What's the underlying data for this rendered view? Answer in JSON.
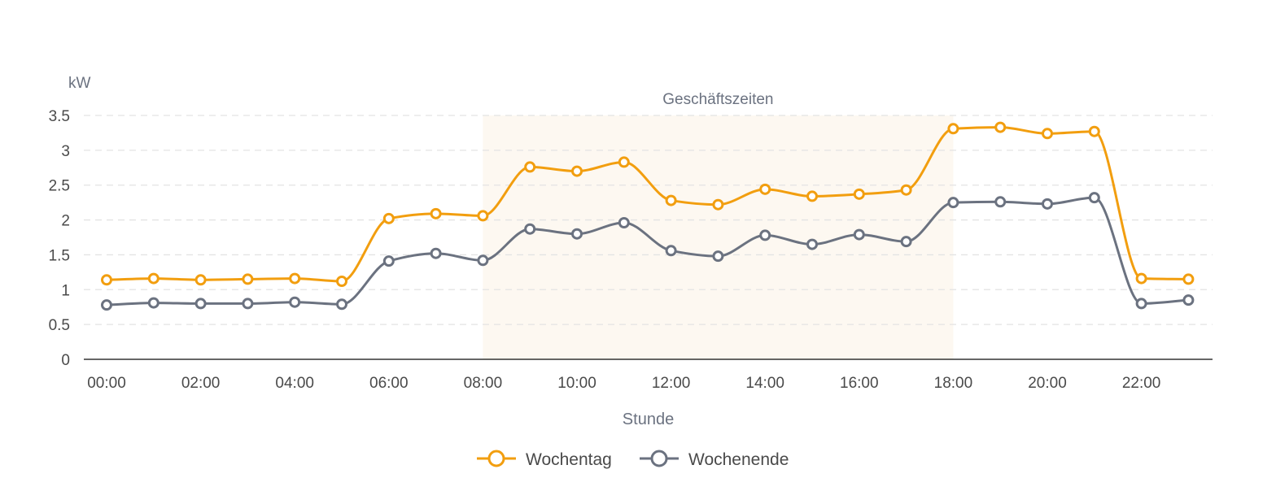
{
  "chart_data": {
    "type": "line",
    "y_unit": "kW",
    "xlabel": "Stunde",
    "ylim": [
      0,
      3.5
    ],
    "y_ticks": [
      0,
      0.5,
      1,
      1.5,
      2,
      2.5,
      3,
      3.5
    ],
    "y_tick_labels": [
      "0",
      "0.5",
      "1",
      "1.5",
      "2",
      "2.5",
      "3",
      "3.5"
    ],
    "x": [
      "00:00",
      "01:00",
      "02:00",
      "03:00",
      "04:00",
      "05:00",
      "06:00",
      "07:00",
      "08:00",
      "09:00",
      "10:00",
      "11:00",
      "12:00",
      "13:00",
      "14:00",
      "15:00",
      "16:00",
      "17:00",
      "18:00",
      "19:00",
      "20:00",
      "21:00",
      "22:00",
      "23:00"
    ],
    "x_tick_labels": [
      "00:00",
      "02:00",
      "04:00",
      "06:00",
      "08:00",
      "10:00",
      "12:00",
      "14:00",
      "16:00",
      "18:00",
      "20:00",
      "22:00"
    ],
    "band": {
      "label": "Geschäftszeiten",
      "from": "08:00",
      "to": "18:00",
      "color": "#fdf8f1"
    },
    "legend_position": "bottom-center",
    "grid": true,
    "series": [
      {
        "name": "Wochentag",
        "color": "#f29e0f",
        "values": [
          1.14,
          1.16,
          1.14,
          1.15,
          1.16,
          1.12,
          2.02,
          2.09,
          2.06,
          2.76,
          2.7,
          2.83,
          2.28,
          2.22,
          2.44,
          2.34,
          2.37,
          2.43,
          3.31,
          3.33,
          3.24,
          3.27,
          1.16,
          1.15
        ]
      },
      {
        "name": "Wochenende",
        "color": "#6b7280",
        "values": [
          0.78,
          0.81,
          0.8,
          0.8,
          0.82,
          0.79,
          1.41,
          1.52,
          1.42,
          1.87,
          1.8,
          1.96,
          1.56,
          1.48,
          1.78,
          1.65,
          1.79,
          1.69,
          2.25,
          2.26,
          2.23,
          2.32,
          0.8,
          0.85
        ]
      }
    ]
  }
}
